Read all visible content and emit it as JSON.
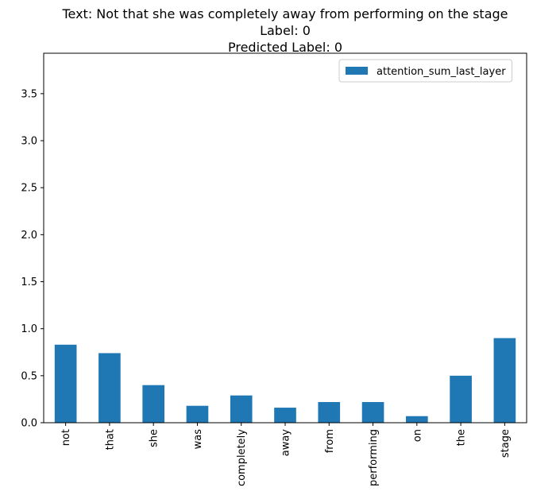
{
  "chart_data": {
    "type": "bar",
    "title_lines": [
      "Text: Not that she was completely away from performing on the stage",
      "Label: 0",
      "Predicted Label: 0"
    ],
    "xlabel": "",
    "ylabel": "",
    "categories": [
      "not",
      "that",
      "she",
      "was",
      "completely",
      "away",
      "from",
      "performing",
      "on",
      "the",
      "stage"
    ],
    "series": [
      {
        "name": "attention_sum_last_layer",
        "color": "#1f77b4",
        "values": [
          0.83,
          0.74,
          0.4,
          0.18,
          0.29,
          0.16,
          0.22,
          0.22,
          0.07,
          0.5,
          0.9
        ]
      }
    ],
    "ylim": [
      0,
      3.93
    ],
    "yticks": [
      0.0,
      0.5,
      1.0,
      1.5,
      2.0,
      2.5,
      3.0,
      3.5
    ],
    "ytick_labels": [
      "0.0",
      "0.5",
      "1.0",
      "1.5",
      "2.0",
      "2.5",
      "3.0",
      "3.5"
    ],
    "grid": false,
    "legend": {
      "position": "top-right",
      "entries": [
        "attention_sum_last_layer"
      ]
    }
  }
}
